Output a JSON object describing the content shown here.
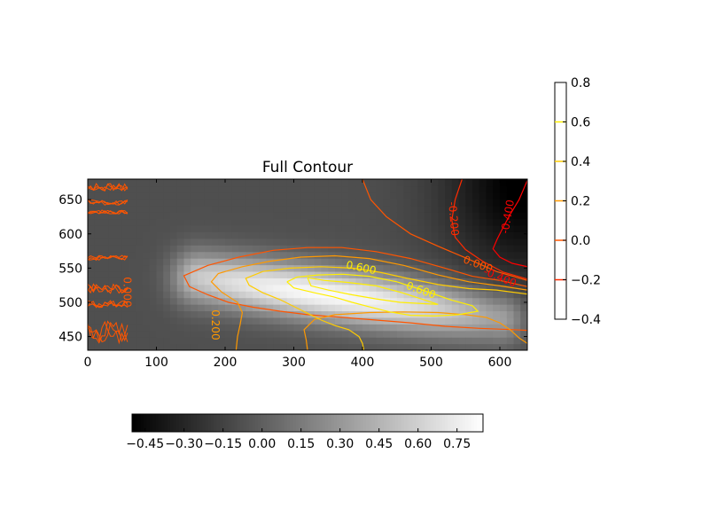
{
  "chart_data": {
    "type": "heatmap",
    "title": "Full Contour",
    "xlabel": "",
    "ylabel": "",
    "xlim": [
      0,
      640
    ],
    "ylim": [
      430,
      680
    ],
    "x_ticks": [
      0,
      100,
      200,
      300,
      400,
      500,
      600
    ],
    "y_ticks": [
      450,
      500,
      550,
      600,
      650
    ],
    "colormap": "gray",
    "color_range": [
      -0.5,
      0.85
    ],
    "field_components": {
      "background": -0.08,
      "ridge": {
        "amplitude": 0.9,
        "start": [
          160,
          537
        ],
        "end": [
          600,
          478
        ],
        "sigma_across": 28,
        "fade_length": 190
      },
      "corner_low": {
        "amplitude": -0.45,
        "center": [
          640,
          680
        ],
        "radius": [
          120,
          150
        ]
      }
    },
    "contour_lines": [
      {
        "level": -0.4,
        "label": "-0.400",
        "color": "#ff0000",
        "points": [
          [
            640,
            678
          ],
          [
            628,
            650
          ],
          [
            616,
            630
          ],
          [
            605,
            610
          ],
          [
            596,
            592
          ],
          [
            590,
            578
          ],
          [
            600,
            566
          ],
          [
            618,
            557
          ],
          [
            640,
            552
          ]
        ]
      },
      {
        "level": -0.2,
        "label": "-0.200",
        "color": "#ff2a00",
        "points": [
          [
            545,
            680
          ],
          [
            535,
            650
          ],
          [
            530,
            620
          ],
          [
            535,
            595
          ],
          [
            550,
            577
          ],
          [
            575,
            560
          ],
          [
            605,
            544
          ],
          [
            640,
            534
          ]
        ]
      },
      {
        "level": 0.0,
        "label": "0.000",
        "color": "#ff5500",
        "points": [
          [
            400,
            680
          ],
          [
            412,
            650
          ],
          [
            435,
            625
          ],
          [
            470,
            600
          ],
          [
            510,
            582
          ],
          [
            550,
            565
          ],
          [
            595,
            545
          ],
          [
            640,
            532
          ]
        ]
      },
      {
        "level": 0.0,
        "label": "0.000",
        "color": "#ff5500",
        "points": [
          [
            640,
            523
          ],
          [
            600,
            532
          ],
          [
            560,
            538
          ],
          [
            520,
            550
          ],
          [
            470,
            564
          ],
          [
            420,
            574
          ],
          [
            370,
            580
          ],
          [
            320,
            580
          ],
          [
            270,
            576
          ],
          [
            220,
            566
          ],
          [
            175,
            554
          ],
          [
            140,
            539
          ],
          [
            148,
            523
          ],
          [
            175,
            511
          ],
          [
            205,
            500
          ],
          [
            240,
            493
          ],
          [
            280,
            487
          ],
          [
            320,
            482
          ],
          [
            370,
            478
          ],
          [
            420,
            474
          ],
          [
            470,
            470
          ],
          [
            520,
            465
          ],
          [
            570,
            462
          ],
          [
            620,
            460
          ],
          [
            640,
            459
          ]
        ]
      },
      {
        "level": 0.2,
        "label": "0.200",
        "color": "#ff9900",
        "points": [
          [
            640,
            518
          ],
          [
            600,
            524
          ],
          [
            555,
            530
          ],
          [
            510,
            540
          ],
          [
            460,
            554
          ],
          [
            410,
            564
          ],
          [
            360,
            568
          ],
          [
            310,
            566
          ],
          [
            265,
            560
          ],
          [
            225,
            552
          ],
          [
            190,
            542
          ],
          [
            180,
            530
          ],
          [
            195,
            515
          ],
          [
            218,
            500
          ],
          [
            225,
            485
          ],
          [
            222,
            468
          ],
          [
            218,
            450
          ],
          [
            216,
            430
          ]
        ]
      },
      {
        "level": 0.2,
        "label": "0.200",
        "color": "#ff9900",
        "points": [
          [
            320,
            430
          ],
          [
            318,
            445
          ],
          [
            315,
            460
          ],
          [
            330,
            475
          ],
          [
            360,
            482
          ],
          [
            410,
            485
          ],
          [
            460,
            486
          ],
          [
            510,
            485
          ],
          [
            550,
            482
          ],
          [
            580,
            478
          ],
          [
            600,
            470
          ],
          [
            615,
            460
          ],
          [
            628,
            448
          ],
          [
            640,
            440
          ]
        ]
      },
      {
        "level": 0.4,
        "label": "0.400",
        "color": "#ffcc00",
        "points": [
          [
            640,
            512
          ],
          [
            595,
            518
          ],
          [
            555,
            520
          ],
          [
            510,
            526
          ],
          [
            465,
            535
          ],
          [
            425,
            544
          ],
          [
            385,
            550
          ],
          [
            340,
            552
          ],
          [
            295,
            550
          ],
          [
            255,
            545
          ],
          [
            230,
            535
          ],
          [
            235,
            525
          ],
          [
            255,
            514
          ],
          [
            280,
            504
          ],
          [
            300,
            494
          ],
          [
            320,
            484
          ],
          [
            340,
            474
          ],
          [
            360,
            466
          ],
          [
            380,
            460
          ],
          [
            395,
            450
          ],
          [
            400,
            440
          ],
          [
            402,
            430
          ]
        ]
      },
      {
        "level": 0.6,
        "label": "0.600",
        "color": "#ffee00",
        "points": [
          [
            290,
            530
          ],
          [
            305,
            537
          ],
          [
            335,
            540
          ],
          [
            372,
            541
          ],
          [
            410,
            538
          ],
          [
            450,
            530
          ],
          [
            490,
            517
          ],
          [
            530,
            503
          ],
          [
            560,
            495
          ],
          [
            568,
            487
          ],
          [
            540,
            482
          ],
          [
            505,
            480
          ],
          [
            470,
            481
          ],
          [
            440,
            486
          ],
          [
            412,
            493
          ],
          [
            385,
            500
          ],
          [
            358,
            508
          ],
          [
            330,
            514
          ],
          [
            300,
            521
          ],
          [
            290,
            530
          ]
        ]
      },
      {
        "level": 0.6,
        "label": "0.600",
        "color": "#ffee00",
        "points": [
          [
            320,
            536
          ],
          [
            345,
            532
          ],
          [
            380,
            529
          ],
          [
            420,
            524
          ],
          [
            458,
            514
          ],
          [
            495,
            502
          ],
          [
            510,
            497
          ],
          [
            490,
            498
          ],
          [
            455,
            500
          ],
          [
            420,
            505
          ],
          [
            385,
            511
          ],
          [
            350,
            518
          ],
          [
            325,
            524
          ],
          [
            320,
            536
          ]
        ]
      }
    ],
    "contour_labels": [
      {
        "text": "-0.400",
        "x": 612,
        "y": 625,
        "color": "#ff0000",
        "angle": -80
      },
      {
        "text": "-0.200",
        "x": 532,
        "y": 622,
        "color": "#ff2a00",
        "angle": 85
      },
      {
        "text": "0.000",
        "x": 568,
        "y": 555,
        "color": "#ff5500",
        "angle": 20
      },
      {
        "text": "-0.400",
        "x": 600,
        "y": 536,
        "color": "#ff0000",
        "angle": 22
      },
      {
        "text": "0.600",
        "x": 398,
        "y": 550,
        "color": "#ffee00",
        "angle": 12
      },
      {
        "text": "0.600",
        "x": 485,
        "y": 517,
        "color": "#ffee00",
        "angle": 20
      },
      {
        "text": "0.200",
        "x": 185,
        "y": 467,
        "color": "#ff9900",
        "angle": 90
      },
      {
        "text": "0.000",
        "x": 57,
        "y": 515,
        "color": "#ff5500",
        "angle": 90
      }
    ],
    "edge_noise": {
      "x_range": [
        0,
        58
      ],
      "bands_y": [
        [
          660,
          676
        ],
        [
          640,
          652
        ],
        [
          628,
          636
        ],
        [
          560,
          570
        ],
        [
          510,
          530
        ],
        [
          490,
          505
        ],
        [
          432,
          480
        ]
      ],
      "color": "#ff5500"
    },
    "colorbar_vertical": {
      "ticks": [
        "0.8",
        "0.6",
        "0.4",
        "0.2",
        "0.0",
        "−0.2",
        "−0.4"
      ],
      "tick_values": [
        0.8,
        0.6,
        0.4,
        0.2,
        0.0,
        -0.2,
        -0.4
      ],
      "range": [
        -0.4,
        0.8
      ],
      "line_levels": [
        {
          "value": 0.6,
          "color": "#ffee00"
        },
        {
          "value": 0.4,
          "color": "#ffcc00"
        },
        {
          "value": 0.2,
          "color": "#ff9900"
        },
        {
          "value": 0.0,
          "color": "#ff5500"
        },
        {
          "value": -0.2,
          "color": "#ff2a00"
        }
      ]
    },
    "colorbar_horizontal": {
      "ticks": [
        "−0.45",
        "−0.30",
        "−0.15",
        "0.00",
        "0.15",
        "0.30",
        "0.45",
        "0.60",
        "0.75"
      ],
      "tick_values": [
        -0.45,
        -0.3,
        -0.15,
        0.0,
        0.15,
        0.3,
        0.45,
        0.6,
        0.75
      ],
      "range": [
        -0.5,
        0.85
      ]
    }
  }
}
